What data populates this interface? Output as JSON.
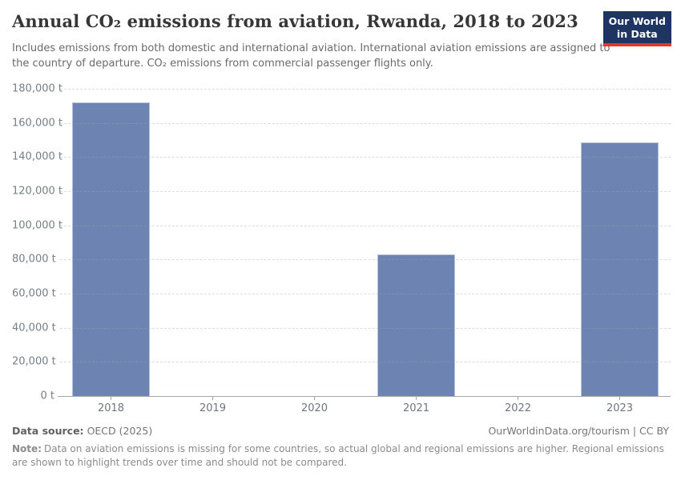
{
  "header": {
    "title": "Annual CO₂ emissions from aviation, Rwanda, 2018 to 2023",
    "subtitle": "Includes emissions from both domestic and international aviation. International aviation emissions are assigned to the country of departure. CO₂ emissions from commercial passenger flights only."
  },
  "logo": {
    "line1": "Our World",
    "line2": "in Data",
    "bg_color": "#1d3560",
    "accent_color": "#e0392e"
  },
  "chart_data": {
    "type": "bar",
    "title": "Annual CO₂ emissions from aviation, Rwanda, 2018 to 2023",
    "categories": [
      "2018",
      "2019",
      "2020",
      "2021",
      "2022",
      "2023"
    ],
    "values": [
      172000,
      null,
      null,
      83000,
      null,
      148500
    ],
    "unit": "t",
    "xlabel": "",
    "ylabel": "",
    "ylim": [
      0,
      180000
    ],
    "ytick_step": 20000,
    "ytick_format": "number_comma_space_unit",
    "grid": true,
    "grid_style": "dashed",
    "legend": "none",
    "bar_color": "#6d84b2"
  },
  "footer": {
    "data_source_label": "Data source:",
    "data_source_value": "OECD (2025)",
    "license": "OurWorldinData.org/tourism | CC BY",
    "note_label": "Note:",
    "note_text": "Data on aviation emissions is missing for some countries, so actual global and regional emissions are higher. Regional emissions are shown to highlight trends over time and should not be compared."
  }
}
